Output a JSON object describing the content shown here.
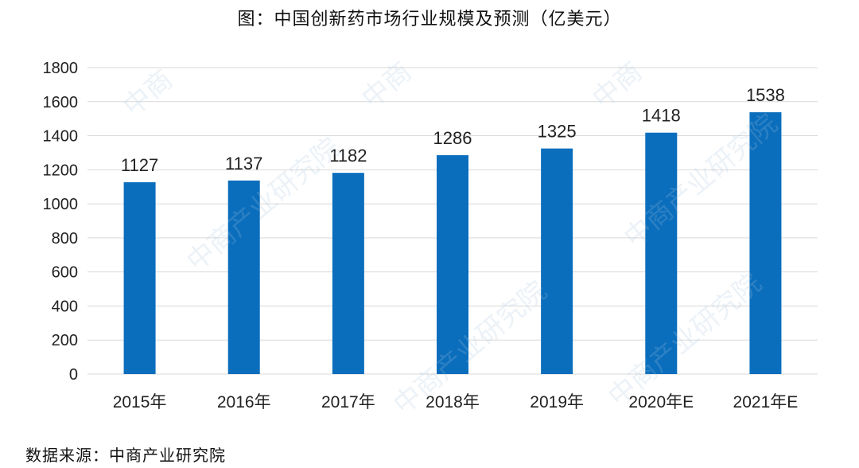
{
  "title": "图：中国创新药市场行业规模及预测（亿美元）",
  "source": "数据来源：中商产业研究院",
  "watermark": {
    "text": "中商产业研究院",
    "short": "中商"
  },
  "colors": {
    "bar": "#0A6EBD",
    "grid": "#D9D9D9",
    "text": "#222222"
  },
  "chart_data": {
    "type": "bar",
    "title": "图：中国创新药市场行业规模及预测（亿美元）",
    "categories": [
      "2015年",
      "2016年",
      "2017年",
      "2018年",
      "2019年",
      "2020年E",
      "2021年E"
    ],
    "values": [
      1127,
      1137,
      1182,
      1286,
      1325,
      1418,
      1538
    ],
    "data_labels": [
      "1127",
      "1137",
      "1182",
      "1286",
      "1325",
      "1418",
      "1538"
    ],
    "yticks": [
      "0",
      "200",
      "400",
      "600",
      "800",
      "1000",
      "1200",
      "1400",
      "1600",
      "1800"
    ],
    "ylim": [
      0,
      1800
    ],
    "xlabel": "",
    "ylabel": "",
    "grid": true,
    "legend": "none"
  }
}
